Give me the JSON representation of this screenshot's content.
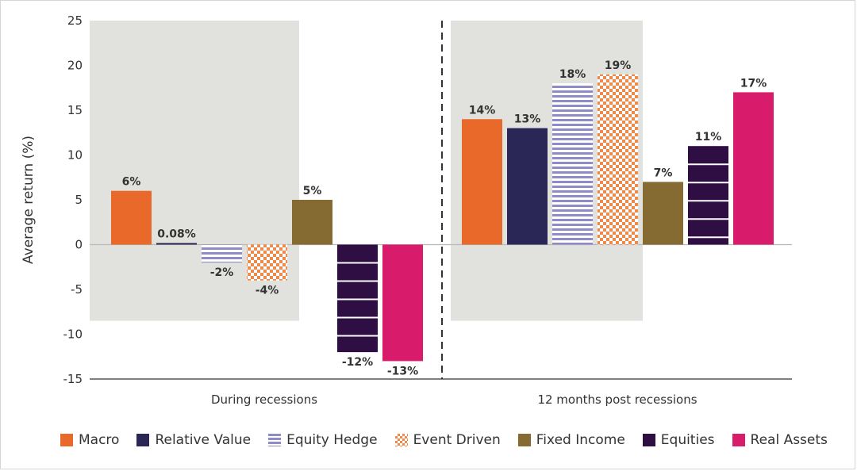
{
  "chart_data": {
    "type": "bar",
    "ylabel": "Average return (%)",
    "ylim": [
      -15,
      25
    ],
    "yticks": [
      25,
      20,
      15,
      10,
      5,
      0,
      -5,
      -10,
      -15
    ],
    "categories": [
      "During recessions",
      "12 months post recessions"
    ],
    "series": [
      {
        "name": "Macro",
        "values": [
          6,
          14
        ],
        "labels": [
          "6%",
          "14%"
        ],
        "color": "#e8692a",
        "pattern": "solid"
      },
      {
        "name": "Relative Value",
        "values": [
          0.08,
          13
        ],
        "labels": [
          "0.08%",
          "13%"
        ],
        "color": "#2a2656",
        "pattern": "solid"
      },
      {
        "name": "Equity Hedge",
        "values": [
          -2,
          18
        ],
        "labels": [
          "-2%",
          "18%"
        ],
        "color": "#8f8bc9",
        "pattern": "stripes"
      },
      {
        "name": "Event Driven",
        "values": [
          -4,
          19
        ],
        "labels": [
          "-4%",
          "19%"
        ],
        "color": "#f08a4b",
        "pattern": "checker"
      },
      {
        "name": "Fixed Income",
        "values": [
          5,
          7
        ],
        "labels": [
          "5%",
          "7%"
        ],
        "color": "#856a31",
        "pattern": "solid"
      },
      {
        "name": "Equities",
        "values": [
          -12,
          11
        ],
        "labels": [
          "-12%",
          "11%"
        ],
        "color": "#2f0e44",
        "pattern": "bands"
      },
      {
        "name": "Real Assets",
        "values": [
          -13,
          17
        ],
        "labels": [
          "-13%",
          "17%"
        ],
        "color": "#d81b6a",
        "pattern": "solid"
      }
    ],
    "shaded_backgrounds": true,
    "group_divider": "dashed",
    "grid": false,
    "legend_position": "bottom"
  }
}
